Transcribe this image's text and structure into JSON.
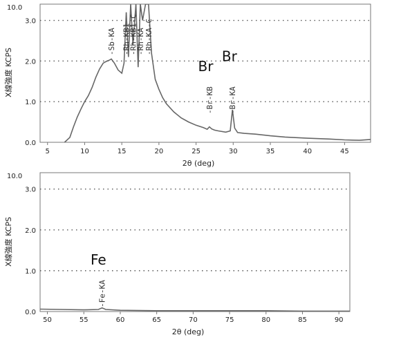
{
  "chart_data": [
    {
      "type": "line",
      "title": "",
      "xlabel": "2θ (deg)",
      "ylabel": "X線強度 KCPS",
      "xlim": [
        4,
        48.5
      ],
      "ylim": [
        0,
        3.4
      ],
      "grid": "horizontal dotted",
      "xticks": [
        "5",
        "10",
        "15",
        "20",
        "25",
        "30",
        "35",
        "40",
        "45"
      ],
      "yticks": [
        "0.0",
        "1.0",
        "2.0",
        "3.0"
      ],
      "ymax_label": "10.0",
      "x": [
        7.3,
        8,
        8.5,
        9,
        9.5,
        10,
        10.5,
        11,
        11.5,
        12,
        12.5,
        13,
        13.3,
        13.6,
        14,
        14.5,
        15,
        15.3,
        15.6,
        15.9,
        16.2,
        16.5,
        16.9,
        17.2,
        17.5,
        17.8,
        18.2,
        18.6,
        19,
        19.5,
        20,
        20.5,
        21,
        22,
        23,
        24,
        25,
        26,
        26.5,
        26.8,
        27.1,
        27.5,
        28,
        29,
        29.6,
        29.9,
        30.2,
        30.6,
        31.5,
        33,
        35,
        37,
        40,
        43,
        45,
        47,
        48.5
      ],
      "values": [
        0,
        0.12,
        0.38,
        0.62,
        0.82,
        1.0,
        1.15,
        1.35,
        1.6,
        1.8,
        1.95,
        2.0,
        2.02,
        2.05,
        1.95,
        1.78,
        1.7,
        1.95,
        3.2,
        2.1,
        3.4,
        2.4,
        3.4,
        1.85,
        3.4,
        3.0,
        3.4,
        3.4,
        2.2,
        1.55,
        1.3,
        1.1,
        0.95,
        0.75,
        0.6,
        0.5,
        0.42,
        0.36,
        0.32,
        0.38,
        0.33,
        0.3,
        0.28,
        0.25,
        0.28,
        0.8,
        0.35,
        0.24,
        0.22,
        0.2,
        0.16,
        0.13,
        0.1,
        0.08,
        0.06,
        0.05,
        0.07
      ],
      "annotations": [
        {
          "text": "-Sb-KA",
          "x": 13.6
        },
        {
          "text": "-Rh-KB1",
          "x": 15.6
        },
        {
          "text": "-Rh-KB1-C",
          "x": 16.5
        },
        {
          "text": "-Rh-KA",
          "x": 17.5
        },
        {
          "text": "-Rh-KA-C",
          "x": 18.6
        },
        {
          "text": "-Br-KB",
          "x": 26.8
        },
        {
          "text": "-Br-KA",
          "x": 29.9
        }
      ],
      "element_labels": [
        {
          "text": "Br",
          "x": 26.3,
          "y": 1.75
        },
        {
          "text": "Br",
          "x": 29.5,
          "y": 2.0
        }
      ]
    },
    {
      "type": "line",
      "title": "",
      "xlabel": "2θ (deg)",
      "ylabel": "X線強度 KCPS",
      "xlim": [
        49,
        91.5
      ],
      "ylim": [
        0,
        3.4
      ],
      "grid": "horizontal dotted",
      "xticks": [
        "50",
        "55",
        "60",
        "65",
        "70",
        "75",
        "80",
        "85",
        "90"
      ],
      "yticks": [
        "0.0",
        "1.0",
        "2.0",
        "3.0"
      ],
      "ymax_label": "10.0",
      "x": [
        49,
        52,
        55,
        57,
        57.5,
        58,
        60,
        65,
        70,
        75,
        80,
        85,
        90,
        91.5
      ],
      "values": [
        0.06,
        0.05,
        0.04,
        0.05,
        0.09,
        0.05,
        0.03,
        0.02,
        0.02,
        0.02,
        0.02,
        0.01,
        0.01,
        0.01
      ],
      "annotations": [
        {
          "text": "-Fe-KA",
          "x": 57.5
        }
      ],
      "element_labels": [
        {
          "text": "Fe",
          "x": 57,
          "y": 1.15
        }
      ]
    }
  ]
}
